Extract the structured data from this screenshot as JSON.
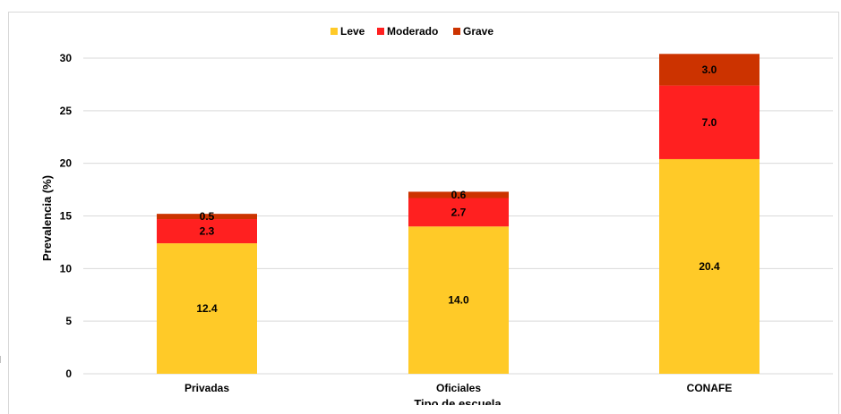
{
  "chart_data": {
    "type": "bar",
    "stacked": true,
    "categories": [
      "Privadas",
      "Oficiales",
      "CONAFE"
    ],
    "series": [
      {
        "name": "Leve",
        "values": [
          12.4,
          14.0,
          20.4
        ],
        "color": "#FFCA28"
      },
      {
        "name": "Moderado",
        "values": [
          2.3,
          2.7,
          7.0
        ],
        "color": "#FF2020"
      },
      {
        "name": "Grave",
        "values": [
          0.5,
          0.6,
          3.0
        ],
        "color": "#CC3300"
      }
    ],
    "data_labels": [
      [
        "12.4",
        "14.0",
        "20.4"
      ],
      [
        "2.3",
        "2.7",
        "7.0"
      ],
      [
        "0.5",
        "0.6",
        "3.0"
      ]
    ],
    "title": "",
    "xlabel": "Tipo de escuela",
    "ylabel": "Prevalencia (%)",
    "ylim": [
      0,
      30
    ],
    "yticks": [
      "0",
      "5",
      "10",
      "15",
      "20",
      "25",
      "30"
    ],
    "grid": true,
    "legend_position": "top-center"
  }
}
